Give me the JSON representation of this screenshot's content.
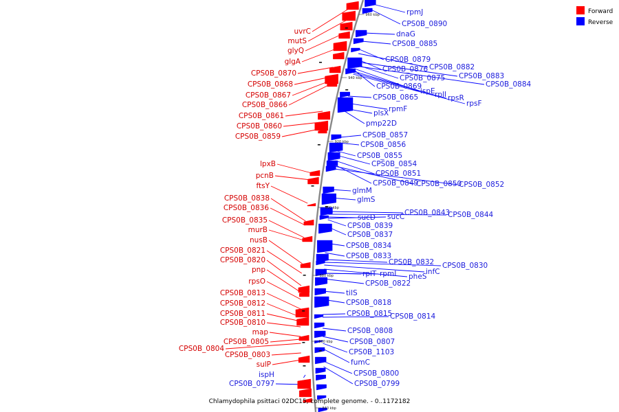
{
  "caption": "Chlamydophila psittaci 02DC15, complete genome. - 0..1172182",
  "legend": [
    {
      "label": "Forward",
      "color": "#ff0000"
    },
    {
      "label": "Reverse",
      "color": "#0000ff"
    }
  ],
  "ticks": [
    "960 kbp",
    "940 kbp",
    "920 kbp",
    "900 kbp",
    "880 kbp",
    "860 kbp",
    "840 kbp"
  ],
  "colors": {
    "forward": "#ff0000",
    "reverse": "#0000ff",
    "forward_label": "#d40000",
    "reverse_label": "#1a1adc",
    "backbone": "#888888"
  },
  "forward_labels": [
    "uvrC",
    "mutS",
    "glyQ",
    "glgA",
    "CPS0B_0870",
    "CPS0B_0868",
    "CPS0B_0867",
    "CPS0B_0866",
    "CPS0B_0861",
    "CPS0B_0860",
    "CPS0B_0859",
    "lpxB",
    "pcnB",
    "ftsY",
    "CPS0B_0838",
    "CPS0B_0836",
    "CPS0B_0835",
    "murB",
    "nusB",
    "CPS0B_0821",
    "CPS0B_0820",
    "pnp",
    "rpsO",
    "CPS0B_0813",
    "CPS0B_0812",
    "CPS0B_0811",
    "CPS0B_0810",
    "map",
    "CPS0B_0805",
    "CPS0B_0804",
    "CPS0B_0803",
    "sulP"
  ],
  "reverse_labels": [
    "rpmJ",
    "CPS0B_0890",
    "dnaG",
    "CPS0B_0885",
    "CPS0B_0879",
    "CPS0B_0882",
    "CPS0B_0876",
    "CPS0B_0883",
    "CPS0B_0875",
    "CPS0B_0884",
    "CPS0B_0869",
    "ispE",
    "rplI",
    "rpsR",
    "rpsF",
    "CPS0B_0865",
    "rpmF",
    "plsX",
    "pmp22D",
    "CPS0B_0857",
    "CPS0B_0856",
    "CPS0B_0855",
    "CPS0B_0854",
    "CPS0B_0851",
    "CPS0B_0849",
    "CPS0B_0850",
    "CPS0B_0852",
    "glmM",
    "glmS",
    "CPS0B_0843",
    "CPS0B_0844",
    "sucD",
    "sucC",
    "CPS0B_0839",
    "CPS0B_0837",
    "CPS0B_0834",
    "CPS0B_0833",
    "CPS0B_0832",
    "CPS0B_0830",
    "infC",
    "rplT",
    "rpmI",
    "pheS",
    "CPS0B_0822",
    "tilS",
    "CPS0B_0818",
    "CPS0B_0815",
    "CPS0B_0814",
    "CPS0B_0808",
    "CPS0B_0807",
    "CPS0B_1103",
    "fumC",
    "CPS0B_0800",
    "CPS0B_0799",
    "ispH",
    "CPS0B_0797"
  ]
}
